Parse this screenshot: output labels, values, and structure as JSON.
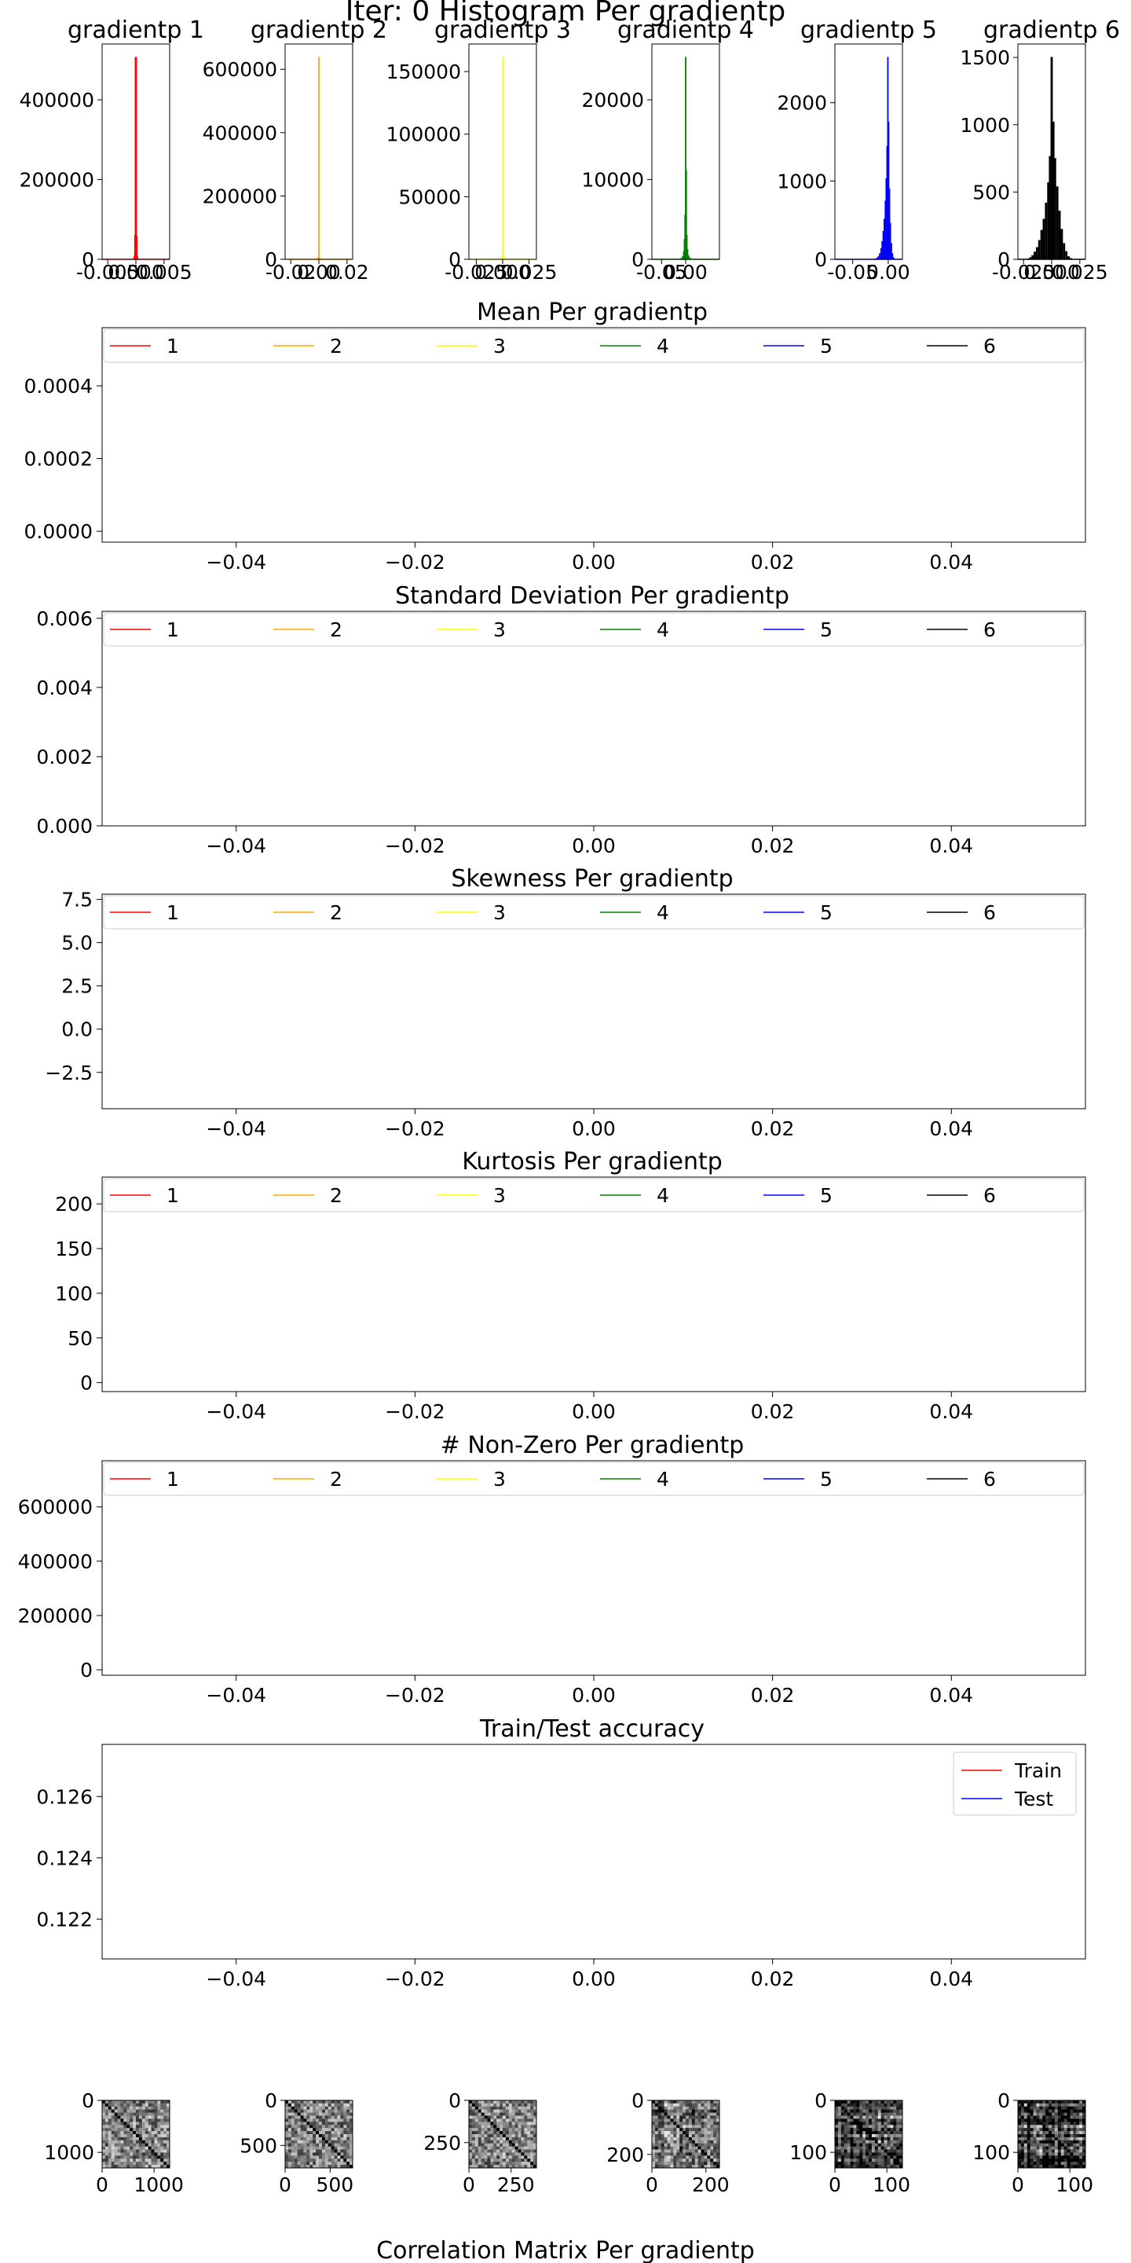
{
  "figure_title": "Iter: 0 Histogram Per gradientp",
  "bottom_title": "Correlation Matrix Per gradientp",
  "colors": [
    "#ff0000",
    "#ffa500",
    "#ffff00",
    "#008000",
    "#0000ff",
    "#000000"
  ],
  "chart_data": [
    {
      "type": "bar",
      "title": "gradientp 1",
      "color": "#ff0000",
      "xlim": [
        -0.006,
        0.006
      ],
      "xtick_labels": [
        "-0.005",
        "0.000",
        "0.005"
      ],
      "xticks": [
        -0.005,
        0,
        0.005
      ],
      "ylim": [
        0,
        540000
      ],
      "yticks": [
        0,
        200000,
        400000
      ],
      "ytick_labels": [
        "0",
        "200000",
        "400000"
      ],
      "bins": [
        [
          -0.0011,
          0.0011
        ],
        [
          -0.0007,
          0.0008
        ],
        [
          -0.0004,
          0.0035
        ],
        [
          -0.0002,
          0.018
        ],
        [
          -0.0001,
          0.12
        ],
        [
          0,
          1.0
        ],
        [
          0.0001,
          0.115
        ],
        [
          0.0002,
          0.017
        ],
        [
          0.0004,
          0.003
        ],
        [
          0.0007,
          0.0007
        ]
      ]
    },
    {
      "type": "bar",
      "title": "gradientp 2",
      "color": "#ffa500",
      "xlim": [
        -0.024,
        0.024
      ],
      "xtick_labels": [
        "-0.02",
        "0.00",
        "0.02"
      ],
      "xticks": [
        -0.02,
        0,
        0.02
      ],
      "ylim": [
        0,
        680000
      ],
      "yticks": [
        0,
        200000,
        400000,
        600000
      ],
      "ytick_labels": [
        "0",
        "200000",
        "400000",
        "600000"
      ],
      "bins": [
        [
          -0.0022,
          0.0012
        ],
        [
          -0.0012,
          0.0045
        ],
        [
          -0.0005,
          0.01
        ],
        [
          0,
          1.0
        ],
        [
          0.0005,
          0.0095
        ],
        [
          0.0012,
          0.004
        ],
        [
          0.0022,
          0.001
        ]
      ]
    },
    {
      "type": "bar",
      "title": "gradientp 3",
      "color": "#ffff00",
      "xlim": [
        -0.032,
        0.032
      ],
      "xtick_labels": [
        "-0.025",
        "0.000",
        "0.025"
      ],
      "xticks": [
        -0.025,
        0,
        0.025
      ],
      "ylim": [
        0,
        172000
      ],
      "yticks": [
        0,
        50000,
        100000,
        150000
      ],
      "ytick_labels": [
        "0",
        "50000",
        "100000",
        "150000"
      ],
      "bins": [
        [
          -0.0025,
          0.0015
        ],
        [
          -0.0012,
          0.006
        ],
        [
          -0.0004,
          0.02
        ],
        [
          0,
          1.0
        ],
        [
          0.0004,
          0.019
        ],
        [
          0.0012,
          0.0055
        ],
        [
          0.0025,
          0.0012
        ]
      ]
    },
    {
      "type": "bar",
      "title": "gradientp 4",
      "color": "#008000",
      "xlim": [
        -0.07,
        0.07
      ],
      "xtick_labels": [
        "-0.05",
        "0.00"
      ],
      "xticks": [
        -0.05,
        0
      ],
      "ylim": [
        0,
        27000
      ],
      "yticks": [
        0,
        10000,
        20000
      ],
      "ytick_labels": [
        "0",
        "10000",
        "20000"
      ],
      "bins": [
        [
          -0.015,
          0.001
        ],
        [
          -0.012,
          0.003
        ],
        [
          -0.009,
          0.007
        ],
        [
          -0.006,
          0.016
        ],
        [
          -0.004,
          0.04
        ],
        [
          -0.0025,
          0.1
        ],
        [
          -0.0012,
          0.22
        ],
        [
          0,
          1.0
        ],
        [
          0.0012,
          0.44
        ],
        [
          0.0025,
          0.12
        ],
        [
          0.004,
          0.05
        ],
        [
          0.006,
          0.02
        ],
        [
          0.009,
          0.008
        ],
        [
          0.012,
          0.003
        ],
        [
          0.015,
          0.001
        ]
      ]
    },
    {
      "type": "bar",
      "title": "gradientp 5",
      "color": "#0000ff",
      "xlim": [
        -0.075,
        0.02
      ],
      "xtick_labels": [
        "-0.05",
        "0.00"
      ],
      "xticks": [
        -0.05,
        0
      ],
      "ylim": [
        0,
        2750
      ],
      "yticks": [
        0,
        1000,
        2000
      ],
      "ytick_labels": [
        "0",
        "1000",
        "2000"
      ],
      "bins": [
        [
          -0.018,
          0.004
        ],
        [
          -0.016,
          0.008
        ],
        [
          -0.014,
          0.015
        ],
        [
          -0.012,
          0.03
        ],
        [
          -0.01,
          0.055
        ],
        [
          -0.0085,
          0.09
        ],
        [
          -0.007,
          0.14
        ],
        [
          -0.0055,
          0.2
        ],
        [
          -0.004,
          0.29
        ],
        [
          -0.0028,
          0.4
        ],
        [
          -0.0016,
          0.56
        ],
        [
          -0.0005,
          1.0
        ],
        [
          0.0006,
          0.68
        ],
        [
          0.0018,
          0.35
        ],
        [
          0.003,
          0.18
        ],
        [
          0.0045,
          0.08
        ],
        [
          0.006,
          0.03
        ],
        [
          0.0075,
          0.01
        ]
      ]
    },
    {
      "type": "bar",
      "title": "gradientp 6",
      "color": "#000000",
      "xlim": [
        -0.03,
        0.03
      ],
      "xtick_labels": [
        "-0.025",
        "0.000",
        "0.025"
      ],
      "xticks": [
        -0.025,
        0,
        0.025
      ],
      "ylim": [
        0,
        1600
      ],
      "yticks": [
        0,
        500,
        1000,
        1500
      ],
      "ytick_labels": [
        "0",
        "500",
        "1000",
        "1500"
      ],
      "bins": [
        [
          -0.021,
          0.004
        ],
        [
          -0.019,
          0.01
        ],
        [
          -0.017,
          0.02
        ],
        [
          -0.015,
          0.038
        ],
        [
          -0.013,
          0.06
        ],
        [
          -0.011,
          0.095
        ],
        [
          -0.009,
          0.145
        ],
        [
          -0.007,
          0.2
        ],
        [
          -0.005,
          0.28
        ],
        [
          -0.003,
          0.38
        ],
        [
          -0.0015,
          0.51
        ],
        [
          0,
          1.0
        ],
        [
          0.0015,
          0.68
        ],
        [
          0.003,
          0.5
        ],
        [
          0.005,
          0.36
        ],
        [
          0.007,
          0.24
        ],
        [
          0.009,
          0.15
        ],
        [
          0.011,
          0.08
        ],
        [
          0.013,
          0.04
        ],
        [
          0.015,
          0.015
        ],
        [
          0.017,
          0.006
        ]
      ]
    },
    {
      "type": "line",
      "title": "Mean Per gradientp",
      "xlim": [
        -0.055,
        0.055
      ],
      "xticks": [
        -0.04,
        -0.02,
        0,
        0.02,
        0.04
      ],
      "xtick_labels": [
        "−0.04",
        "−0.02",
        "0.00",
        "0.02",
        "0.04"
      ],
      "ylim": [
        -3e-05,
        0.00056
      ],
      "yticks": [
        0,
        0.0002,
        0.0004
      ],
      "ytick_labels": [
        "0.0000",
        "0.0002",
        "0.0004"
      ],
      "legend": [
        "1",
        "2",
        "3",
        "4",
        "5",
        "6"
      ],
      "legend_position": "top",
      "series": []
    },
    {
      "type": "line",
      "title": "Standard Deviation Per gradientp",
      "xlim": [
        -0.055,
        0.055
      ],
      "xticks": [
        -0.04,
        -0.02,
        0,
        0.02,
        0.04
      ],
      "xtick_labels": [
        "−0.04",
        "−0.02",
        "0.00",
        "0.02",
        "0.04"
      ],
      "ylim": [
        0,
        0.0062
      ],
      "yticks": [
        0,
        0.002,
        0.004,
        0.006
      ],
      "ytick_labels": [
        "0.000",
        "0.002",
        "0.004",
        "0.006"
      ],
      "legend": [
        "1",
        "2",
        "3",
        "4",
        "5",
        "6"
      ],
      "legend_position": "top",
      "series": []
    },
    {
      "type": "line",
      "title": "Skewness Per gradientp",
      "xlim": [
        -0.055,
        0.055
      ],
      "xticks": [
        -0.04,
        -0.02,
        0,
        0.02,
        0.04
      ],
      "xtick_labels": [
        "−0.04",
        "−0.02",
        "0.00",
        "0.02",
        "0.04"
      ],
      "ylim": [
        -4.6,
        7.8
      ],
      "yticks": [
        -2.5,
        0,
        2.5,
        5,
        7.5
      ],
      "ytick_labels": [
        "−2.5",
        "0.0",
        "2.5",
        "5.0",
        "7.5"
      ],
      "legend": [
        "1",
        "2",
        "3",
        "4",
        "5",
        "6"
      ],
      "legend_position": "top",
      "series": []
    },
    {
      "type": "line",
      "title": "Kurtosis Per gradientp",
      "xlim": [
        -0.055,
        0.055
      ],
      "xticks": [
        -0.04,
        -0.02,
        0,
        0.02,
        0.04
      ],
      "xtick_labels": [
        "−0.04",
        "−0.02",
        "0.00",
        "0.02",
        "0.04"
      ],
      "ylim": [
        -10,
        230
      ],
      "yticks": [
        0,
        50,
        100,
        150,
        200
      ],
      "ytick_labels": [
        "0",
        "50",
        "100",
        "150",
        "200"
      ],
      "legend": [
        "1",
        "2",
        "3",
        "4",
        "5",
        "6"
      ],
      "legend_position": "top",
      "series": []
    },
    {
      "type": "line",
      "title": "# Non-Zero Per gradientp",
      "xlim": [
        -0.055,
        0.055
      ],
      "xticks": [
        -0.04,
        -0.02,
        0,
        0.02,
        0.04
      ],
      "xtick_labels": [
        "−0.04",
        "−0.02",
        "0.00",
        "0.02",
        "0.04"
      ],
      "ylim": [
        -20000,
        770000
      ],
      "yticks": [
        0,
        200000,
        400000,
        600000
      ],
      "ytick_labels": [
        "0",
        "200000",
        "400000",
        "600000"
      ],
      "legend": [
        "1",
        "2",
        "3",
        "4",
        "5",
        "6"
      ],
      "legend_position": "top",
      "series": []
    },
    {
      "type": "line",
      "title": "Train/Test accuracy",
      "xlim": [
        -0.055,
        0.055
      ],
      "xticks": [
        -0.04,
        -0.02,
        0,
        0.02,
        0.04
      ],
      "xtick_labels": [
        "−0.04",
        "−0.02",
        "0.00",
        "0.02",
        "0.04"
      ],
      "ylim": [
        0.1207,
        0.1277
      ],
      "yticks": [
        0.122,
        0.124,
        0.126
      ],
      "ytick_labels": [
        "0.122",
        "0.124",
        "0.126"
      ],
      "legend": [
        "Train",
        "Test"
      ],
      "legend_colors": [
        "#ff0000",
        "#0000ff"
      ],
      "legend_position": "upper right",
      "series": []
    },
    {
      "type": "heatmap",
      "size": 1300,
      "xticks": [
        0,
        1000
      ],
      "xtick_labels": [
        "0",
        "1000"
      ],
      "yticks": [
        0,
        1000
      ],
      "ytick_labels": [
        "0",
        "1000"
      ],
      "seed": 11,
      "density": 0.05
    },
    {
      "type": "heatmap",
      "size": 750,
      "xticks": [
        0,
        500
      ],
      "xtick_labels": [
        "0",
        "500"
      ],
      "yticks": [
        0,
        500
      ],
      "ytick_labels": [
        "0",
        "500"
      ],
      "seed": 23,
      "density": 0.05
    },
    {
      "type": "heatmap",
      "size": 400,
      "xticks": [
        0,
        250
      ],
      "xtick_labels": [
        "0",
        "250"
      ],
      "yticks": [
        0,
        250
      ],
      "ytick_labels": [
        "0",
        "250"
      ],
      "seed": 37,
      "density": 0.05
    },
    {
      "type": "heatmap",
      "size": 250,
      "xticks": [
        0,
        200
      ],
      "xtick_labels": [
        "0",
        "200"
      ],
      "yticks": [
        0,
        200
      ],
      "ytick_labels": [
        "0",
        "200"
      ],
      "seed": 41,
      "density": 0.18
    },
    {
      "type": "heatmap",
      "size": 130,
      "xticks": [
        0,
        100
      ],
      "xtick_labels": [
        "0",
        "100"
      ],
      "yticks": [
        0,
        100
      ],
      "ytick_labels": [
        "0",
        "100"
      ],
      "seed": 53,
      "density": 0.3
    },
    {
      "type": "heatmap",
      "size": 130,
      "xticks": [
        0,
        100
      ],
      "xtick_labels": [
        "0",
        "100"
      ],
      "yticks": [
        0,
        100
      ],
      "ytick_labels": [
        "0",
        "100"
      ],
      "seed": 67,
      "density": 0.35
    }
  ]
}
